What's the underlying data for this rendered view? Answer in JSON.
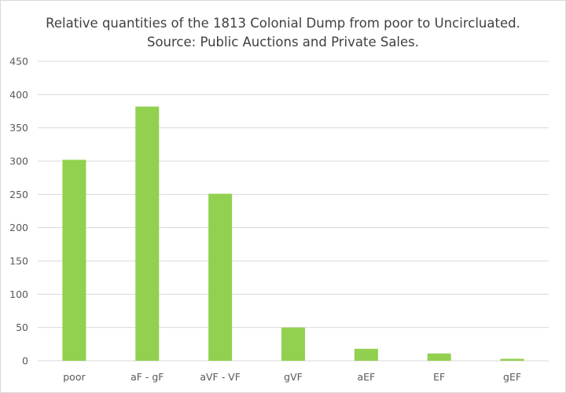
{
  "chart_data": {
    "type": "bar",
    "title": "Relative quantities of the 1813 Colonial Dump from poor to Uncircluated.",
    "subtitle": "Source: Public Auctions and Private Sales.",
    "categories": [
      "poor",
      "aF - gF",
      "aVF - VF",
      "gVF",
      "aEF",
      "EF",
      "gEF"
    ],
    "values": [
      302,
      382,
      251,
      50,
      18,
      11,
      3
    ],
    "ylim": [
      0,
      450
    ],
    "yticks": [
      0,
      50,
      100,
      150,
      200,
      250,
      300,
      350,
      400,
      450
    ],
    "grid": true,
    "legend": "none",
    "colors": {
      "bar": "#92d050",
      "grid": "#d9d9d9",
      "text": "#595959",
      "title": "#404040"
    }
  }
}
